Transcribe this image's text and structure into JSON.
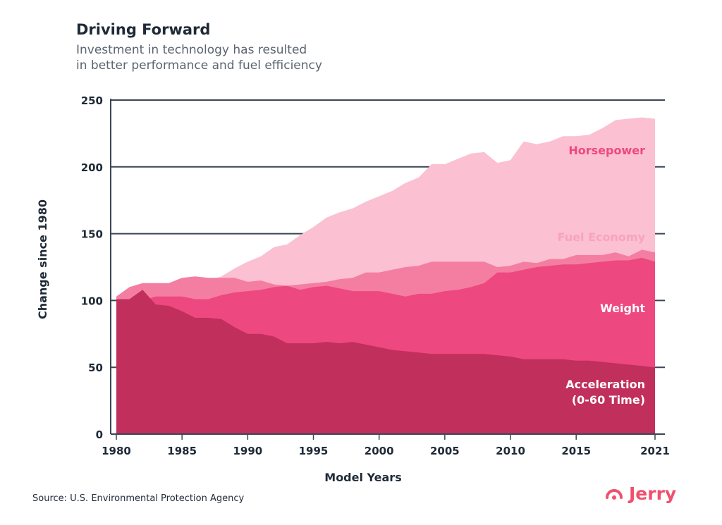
{
  "header": {
    "title": "Driving Forward",
    "subtitle_line1": "Investment in technology has resulted",
    "subtitle_line2": "in better performance and fuel efficiency"
  },
  "footer": {
    "source": "Source: U.S. Environmental Protection Agency"
  },
  "brand": {
    "name": "Jerry",
    "color": "#f0506e",
    "icon": "jerry-logo-icon"
  },
  "colors": {
    "horsepower": "#fbc0d2",
    "fuel_economy": "#f47ea2",
    "weight": "#ee4880",
    "acceleration": "#c12f5c",
    "grid": "#3a4656",
    "text": "#1f2a37"
  },
  "chart_data": {
    "type": "area",
    "title": "Driving Forward",
    "xlabel": "Model Years",
    "ylabel": "Change since 1980",
    "xlim": [
      1980,
      2021
    ],
    "ylim": [
      0,
      250
    ],
    "yticks": [
      0,
      50,
      100,
      150,
      200,
      250
    ],
    "xticks": [
      1980,
      1985,
      1990,
      1995,
      2000,
      2005,
      2010,
      2015,
      2021
    ],
    "grid": true,
    "years": [
      1980,
      1981,
      1982,
      1983,
      1984,
      1985,
      1986,
      1987,
      1988,
      1989,
      1990,
      1991,
      1992,
      1993,
      1994,
      1995,
      1996,
      1997,
      1998,
      1999,
      2000,
      2001,
      2002,
      2003,
      2004,
      2005,
      2006,
      2007,
      2008,
      2009,
      2010,
      2011,
      2012,
      2013,
      2014,
      2015,
      2016,
      2017,
      2018,
      2019,
      2020,
      2021
    ],
    "series": [
      {
        "name": "Horsepower",
        "label_lines": [
          "Horsepower"
        ],
        "label_color": "#ee4880",
        "values": [
          100,
          110,
          113,
          112,
          111,
          113,
          115,
          115,
          118,
          124,
          129,
          133,
          140,
          142,
          149,
          155,
          162,
          166,
          169,
          174,
          178,
          182,
          188,
          192,
          202,
          202,
          206,
          210,
          211,
          203,
          205,
          219,
          217,
          219,
          223,
          223,
          224,
          229,
          235,
          236,
          237,
          236
        ]
      },
      {
        "name": "Fuel Economy",
        "label_lines": [
          "Fuel Economy"
        ],
        "label_color": "#f8a3bd",
        "values": [
          103,
          110,
          113,
          113,
          113,
          117,
          118,
          117,
          117,
          117,
          114,
          115,
          112,
          111,
          112,
          113,
          114,
          116,
          117,
          121,
          121,
          123,
          125,
          126,
          129,
          129,
          129,
          129,
          129,
          125,
          126,
          129,
          128,
          131,
          131,
          134,
          134,
          134,
          136,
          133,
          138,
          136
        ]
      },
      {
        "name": "Weight",
        "label_lines": [
          "Weight"
        ],
        "label_color": "#ffffff",
        "values": [
          101,
          101,
          100,
          103,
          103,
          103,
          101,
          101,
          104,
          106,
          107,
          108,
          110,
          111,
          108,
          110,
          111,
          109,
          107,
          107,
          107,
          105,
          103,
          105,
          105,
          107,
          108,
          110,
          113,
          121,
          121,
          123,
          125,
          126,
          127,
          127,
          128,
          129,
          130,
          130,
          132,
          129
        ]
      },
      {
        "name": "Acceleration",
        "label_lines": [
          "Acceleration",
          "(0-60 Time)"
        ],
        "label_color": "#ffffff",
        "values": [
          101,
          101,
          108,
          97,
          96,
          92,
          87,
          87,
          86,
          80,
          75,
          75,
          73,
          68,
          68,
          68,
          69,
          68,
          69,
          67,
          65,
          63,
          62,
          61,
          60,
          60,
          60,
          60,
          60,
          59,
          58,
          56,
          56,
          56,
          56,
          55,
          55,
          54,
          53,
          52,
          51,
          50
        ]
      }
    ]
  }
}
